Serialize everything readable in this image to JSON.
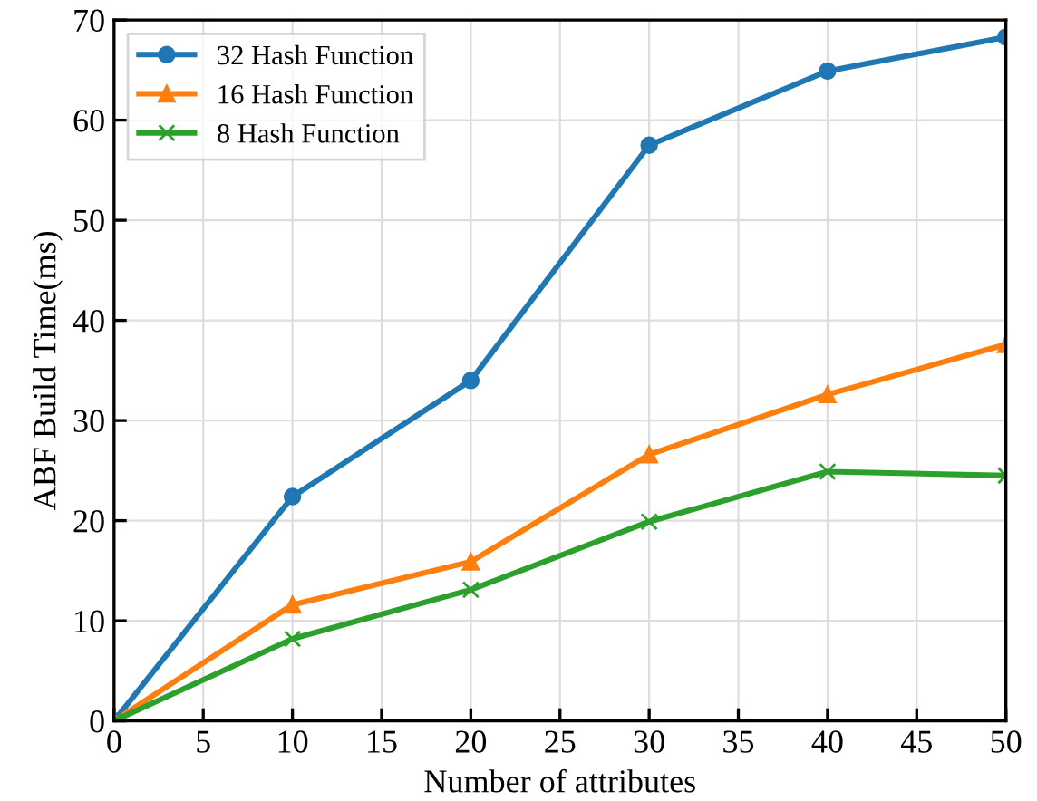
{
  "chart_data": {
    "type": "line",
    "xlabel": "Number of attributes",
    "ylabel": "ABF Build Time(ms)",
    "x": [
      0,
      10,
      20,
      30,
      40,
      50
    ],
    "series": [
      {
        "name": "32 Hash Function",
        "color": "#1f77b4",
        "marker": "circle",
        "values": [
          0,
          22.4,
          34,
          57.5,
          64.9,
          68.3
        ]
      },
      {
        "name": "16 Hash Function",
        "color": "#ff7f0e",
        "marker": "triangle",
        "values": [
          0,
          11.6,
          15.9,
          26.6,
          32.6,
          37.6
        ]
      },
      {
        "name": "8 Hash Function",
        "color": "#2ca02c",
        "marker": "cross",
        "values": [
          0,
          8.2,
          13.1,
          19.9,
          24.9,
          24.5
        ]
      }
    ],
    "xlim": [
      0,
      50
    ],
    "xticks": [
      0,
      5,
      10,
      15,
      20,
      25,
      30,
      35,
      40,
      45,
      50
    ],
    "ylim": [
      0,
      70
    ],
    "yticks": [
      0,
      10,
      20,
      30,
      40,
      50,
      60,
      70
    ],
    "grid": true,
    "legend": "top left",
    "line_style": "solid"
  }
}
